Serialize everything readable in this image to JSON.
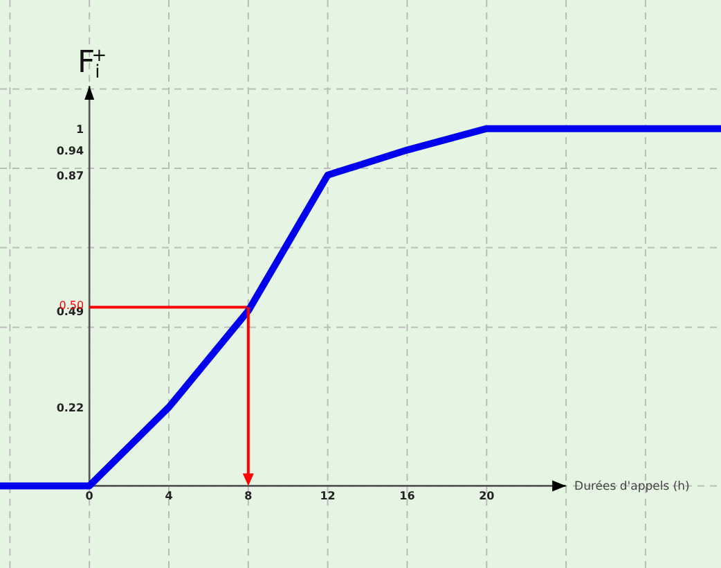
{
  "chart_data": {
    "type": "line",
    "xlabel": "Durées d'appels (h)",
    "ylabel": "F$_{i}$$^{+}$",
    "x": [
      -4.5,
      0,
      4,
      8,
      12,
      16,
      20,
      31.8
    ],
    "series": [
      {
        "color": "#0000ee",
        "values": [
          0,
          0,
          0.22,
          0.49,
          0.87,
          0.94,
          1,
          1
        ]
      }
    ],
    "xlim": [
      -4.5,
      31.8
    ],
    "ylim": [
      -0.23,
      1.36
    ],
    "xticks": [
      {
        "value": -4,
        "label": null
      },
      0,
      4,
      8,
      12,
      16,
      20,
      {
        "value": 24,
        "label": null
      },
      {
        "value": 28,
        "label": null
      }
    ],
    "yticks": [
      0.22,
      {
        "value": 0.444,
        "label": null
      },
      0.49,
      {
        "value": 0.667,
        "label": null
      },
      0.87,
      {
        "value": 0.889,
        "label": null
      },
      0.94,
      1,
      {
        "value": 1.111,
        "label": null
      }
    ],
    "ref_lines": [
      {
        "axis": "y",
        "value": 0.5,
        "label": "0.50",
        "color": "#ff0000"
      },
      {
        "axis": "x",
        "value": 8,
        "color": "#ff0000"
      }
    ],
    "grid": true,
    "marker": "none",
    "line_style": "solid"
  }
}
